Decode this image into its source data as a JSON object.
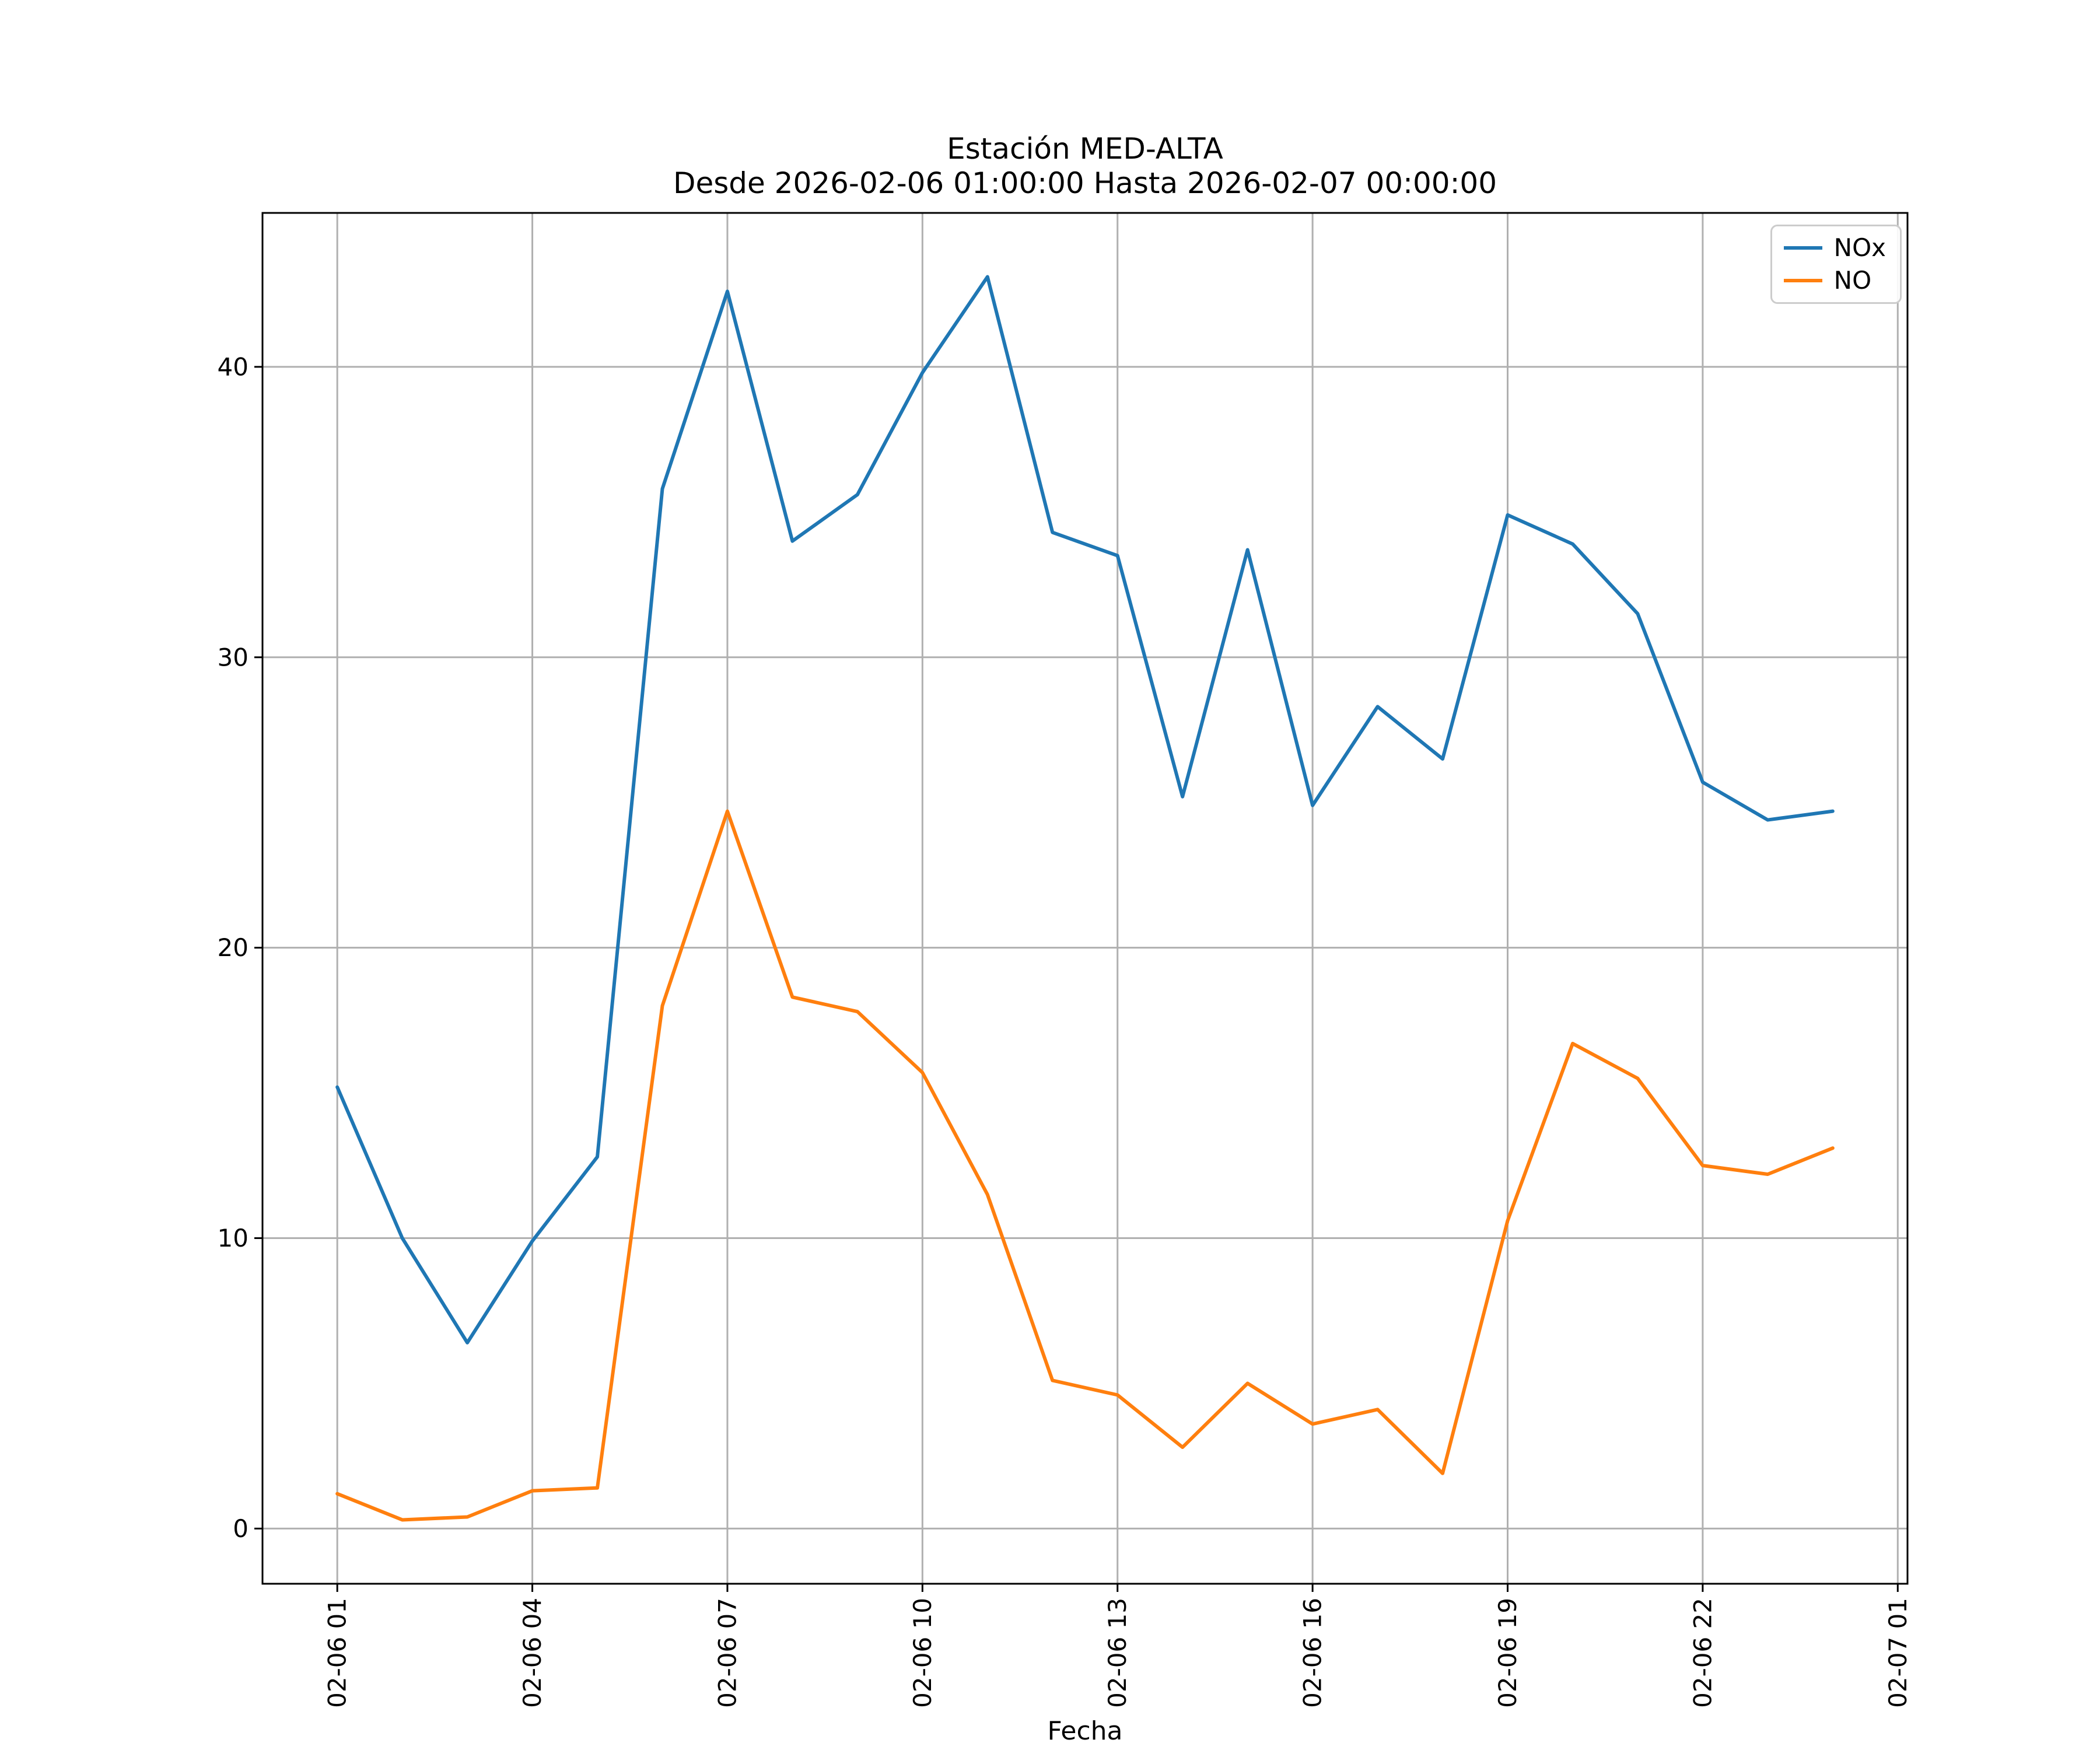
{
  "title": "Estación MED-ALTA",
  "subtitle": "Desde 2026-02-06 01:00:00 Hasta 2026-02-07 00:00:00",
  "chart_data": {
    "type": "line",
    "title": "Estación MED-ALTA",
    "subtitle": "Desde 2026-02-06 01:00:00 Hasta 2026-02-07 00:00:00",
    "xlabel": "Fecha",
    "ylabel": "",
    "x_unit": "hours since 2026-02-06 00:00",
    "x_hours": [
      1,
      2,
      3,
      4,
      5,
      6,
      7,
      8,
      9,
      10,
      11,
      12,
      13,
      14,
      15,
      16,
      17,
      18,
      19,
      20,
      21,
      22,
      23,
      24
    ],
    "series": [
      {
        "name": "NOx",
        "color": "#1f77b4",
        "values": [
          15.2,
          10.0,
          6.4,
          9.9,
          12.8,
          35.8,
          42.6,
          34.0,
          35.6,
          39.8,
          43.1,
          34.3,
          33.5,
          25.2,
          33.7,
          24.9,
          28.3,
          26.5,
          34.9,
          33.9,
          31.5,
          25.7,
          24.4,
          24.7
        ]
      },
      {
        "name": "NO",
        "color": "#ff7f0e",
        "values": [
          1.2,
          0.3,
          0.4,
          1.3,
          1.4,
          18.0,
          24.7,
          18.3,
          17.8,
          15.7,
          11.5,
          5.1,
          4.6,
          2.8,
          5.0,
          3.6,
          4.1,
          1.9,
          10.6,
          16.7,
          15.5,
          12.5,
          12.2,
          13.1
        ]
      }
    ],
    "x_tick_hours": [
      1,
      4,
      7,
      10,
      13,
      16,
      19,
      22,
      25
    ],
    "x_tick_labels": [
      "02-06 01",
      "02-06 04",
      "02-06 07",
      "02-06 10",
      "02-06 13",
      "02-06 16",
      "02-06 19",
      "02-06 22",
      "02-07 01"
    ],
    "x_tick_rotation": 90,
    "y_ticks": [
      0,
      10,
      20,
      30,
      40
    ],
    "xlim": [
      -0.15,
      25.15
    ],
    "ylim": [
      -1.9,
      45.3
    ],
    "grid": true,
    "grid_color": "#b0b0b0",
    "spine_color": "#000000",
    "legend_position": "upper right"
  }
}
